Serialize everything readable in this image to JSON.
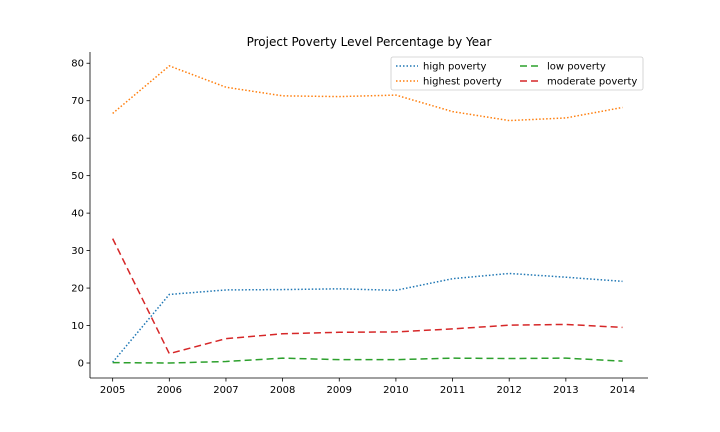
{
  "chart_data": {
    "type": "line",
    "title": "Project Poverty Level Percentage by Year",
    "xlabel": "",
    "ylabel": "",
    "x": [
      2005,
      2006,
      2007,
      2008,
      2009,
      2010,
      2011,
      2012,
      2013,
      2014
    ],
    "xlim": [
      2004.6,
      2014.45
    ],
    "ylim": [
      -4,
      83
    ],
    "y_ticks": [
      0,
      10,
      20,
      30,
      40,
      50,
      60,
      70,
      80
    ],
    "grid": false,
    "legend_position": "top-right",
    "legend_columns": 2,
    "series": [
      {
        "name": "high poverty",
        "color": "#1f77b4",
        "dash": "dotted",
        "values": [
          0.2,
          18.3,
          19.5,
          19.6,
          19.8,
          19.4,
          22.5,
          23.9,
          22.9,
          21.8
        ]
      },
      {
        "name": "highest poverty",
        "color": "#ff7f0e",
        "dash": "dotted",
        "values": [
          66.6,
          79.3,
          73.6,
          71.3,
          71.1,
          71.5,
          67.1,
          64.7,
          65.4,
          68.2
        ]
      },
      {
        "name": "low poverty",
        "color": "#2ca02c",
        "dash": "dashed",
        "values": [
          0.1,
          0.0,
          0.4,
          1.3,
          0.9,
          0.9,
          1.3,
          1.2,
          1.3,
          0.5
        ]
      },
      {
        "name": "moderate poverty",
        "color": "#d62728",
        "dash": "dashed",
        "values": [
          33.2,
          2.5,
          6.5,
          7.8,
          8.2,
          8.3,
          9.1,
          10.1,
          10.3,
          9.5
        ]
      }
    ]
  }
}
